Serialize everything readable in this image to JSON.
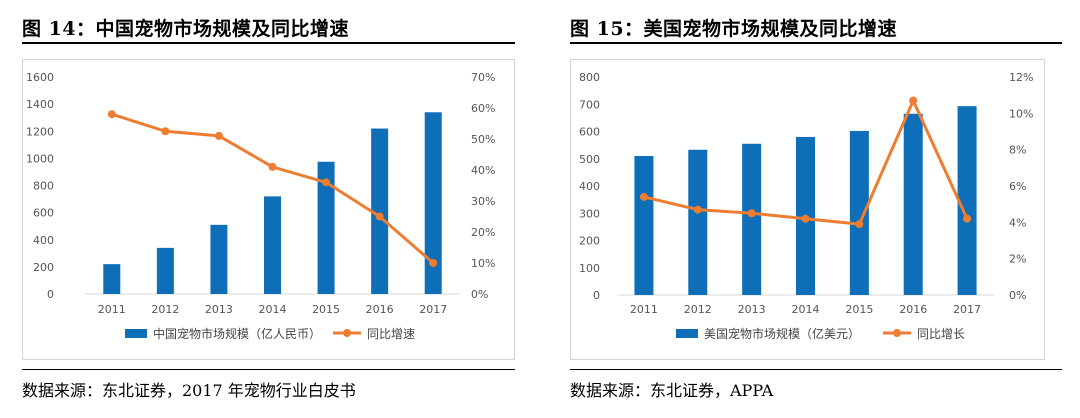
{
  "figures": [
    {
      "title": "图 14：中国宠物市场规模及同比增速",
      "source": "数据来源：东北证券，2017 年宠物行业白皮书"
    },
    {
      "title": "图 15：美国宠物市场规模及同比增速",
      "source": "数据来源：东北证券，APPA"
    }
  ],
  "colors": {
    "bar": "#0e6eb8",
    "line": "#ed7d31",
    "axis": "#d9d9d9",
    "text": "#595959"
  },
  "chart_data": [
    {
      "type": "bar+line",
      "categories": [
        "2011",
        "2012",
        "2013",
        "2014",
        "2015",
        "2016",
        "2017"
      ],
      "series": [
        {
          "name": "中国宠物市场规模（亿人民币）",
          "type": "bar",
          "axis": "left",
          "values": [
            220,
            340,
            510,
            720,
            975,
            1220,
            1340
          ]
        },
        {
          "name": "同比增速",
          "type": "line",
          "axis": "right",
          "values": [
            0.58,
            0.525,
            0.51,
            0.41,
            0.36,
            0.25,
            0.1
          ]
        }
      ],
      "left_axis": {
        "min": 0,
        "max": 1600,
        "ticks": [
          "0",
          "200",
          "400",
          "600",
          "800",
          "1000",
          "1200",
          "1400",
          "1600"
        ]
      },
      "right_axis": {
        "min": 0,
        "max": 0.7,
        "ticks": [
          "0%",
          "10%",
          "20%",
          "30%",
          "40%",
          "50%",
          "60%",
          "70%"
        ]
      },
      "legend_position": "bottom"
    },
    {
      "type": "bar+line",
      "categories": [
        "2011",
        "2012",
        "2013",
        "2014",
        "2015",
        "2016",
        "2017"
      ],
      "series": [
        {
          "name": "美国宠物市场规模（亿美元）",
          "type": "bar",
          "axis": "left",
          "values": [
            510,
            533,
            555,
            580,
            602,
            665,
            693
          ]
        },
        {
          "name": "同比增长",
          "type": "line",
          "axis": "right",
          "values": [
            0.054,
            0.047,
            0.045,
            0.042,
            0.039,
            0.107,
            0.042
          ]
        }
      ],
      "left_axis": {
        "min": 0,
        "max": 800,
        "ticks": [
          "0",
          "100",
          "200",
          "300",
          "400",
          "500",
          "600",
          "700",
          "800"
        ]
      },
      "right_axis": {
        "min": 0,
        "max": 0.12,
        "ticks": [
          "0%",
          "2%",
          "4%",
          "6%",
          "8%",
          "10%",
          "12%"
        ]
      },
      "legend_position": "bottom"
    }
  ]
}
